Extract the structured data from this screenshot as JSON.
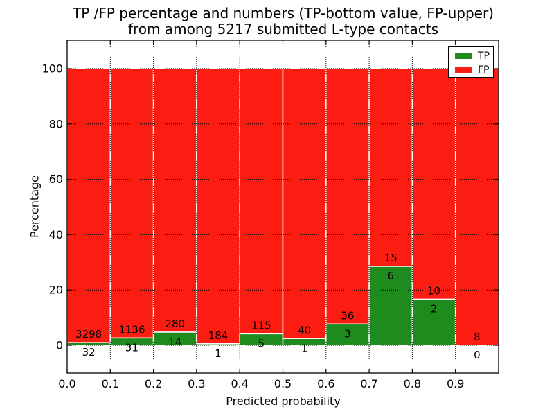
{
  "chart_data": {
    "type": "bar",
    "stacked": true,
    "title_lines": [
      "TP /FP percentage and numbers (TP-bottom value, FP-upper)",
      "from among 5217 submitted L-type contacts"
    ],
    "xlabel": "Predicted probability",
    "ylabel": "Percentage",
    "x_tick_labels": [
      "0.0",
      "0.1",
      "0.2",
      "0.3",
      "0.4",
      "0.5",
      "0.6",
      "0.7",
      "0.8",
      "0.9"
    ],
    "y_ticks": [
      0,
      20,
      40,
      60,
      80,
      100
    ],
    "ylim": [
      -10,
      110.3
    ],
    "xlim": [
      0.0,
      1.0
    ],
    "bin_width": 0.1,
    "total_contacts": 5217,
    "grid": "dotted",
    "legend_position": "upper right",
    "series": [
      {
        "name": "TP",
        "color": "#1f8b1f",
        "counts": [
          32,
          31,
          14,
          1,
          5,
          1,
          3,
          6,
          2,
          0
        ]
      },
      {
        "name": "FP",
        "color": "#fc1d12",
        "counts": [
          3298,
          1136,
          280,
          184,
          115,
          40,
          36,
          15,
          10,
          8
        ]
      }
    ],
    "tp_percent_by_bin": [
      0.96,
      2.66,
      4.76,
      0.54,
      4.17,
      2.44,
      7.69,
      28.57,
      16.67,
      0.0
    ],
    "bar_total_percent": 100
  }
}
